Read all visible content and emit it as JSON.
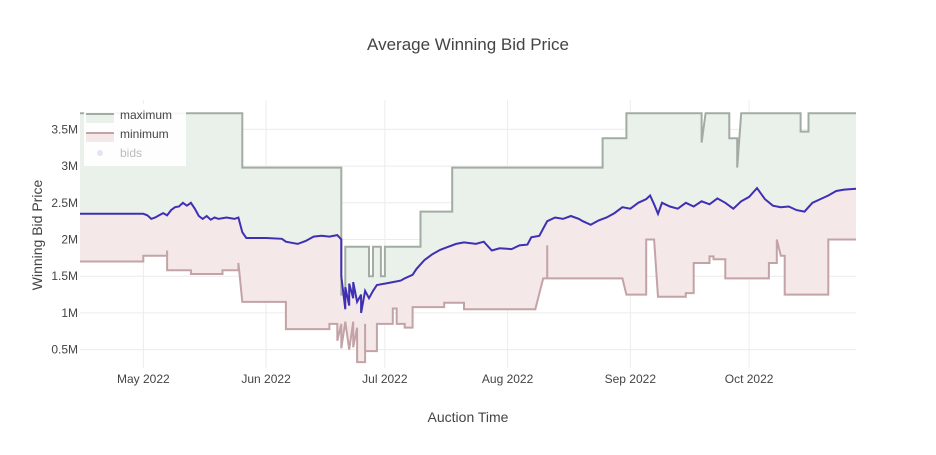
{
  "chart_data": {
    "type": "line",
    "title": "Average Winning Bid Price",
    "xlabel": "Auction Time",
    "ylabel": "Winning Bid Price",
    "x_range": [
      "2022-04-15",
      "2022-10-28"
    ],
    "ylim": [
      0.25,
      3.9
    ],
    "y_unit": "M",
    "x_ticks": [
      {
        "date": "2022-05-01",
        "label": "May 2022"
      },
      {
        "date": "2022-06-01",
        "label": "Jun 2022"
      },
      {
        "date": "2022-07-01",
        "label": "Jul 2022"
      },
      {
        "date": "2022-08-01",
        "label": "Aug 2022"
      },
      {
        "date": "2022-09-01",
        "label": "Sep 2022"
      },
      {
        "date": "2022-10-01",
        "label": "Oct 2022"
      }
    ],
    "y_ticks": [
      {
        "value": 0.5,
        "label": "0.5M"
      },
      {
        "value": 1.0,
        "label": "1M"
      },
      {
        "value": 1.5,
        "label": "1.5M"
      },
      {
        "value": 2.0,
        "label": "2M"
      },
      {
        "value": 2.5,
        "label": "2.5M"
      },
      {
        "value": 3.0,
        "label": "3M"
      },
      {
        "value": 3.5,
        "label": "3.5M"
      }
    ],
    "grid": true,
    "legend_position": "top-left",
    "colors": {
      "maximum_line": "#a3aca3",
      "maximum_fill": "#eaf1ea",
      "minimum_line": "#c4a3a6",
      "minimum_fill": "#f4e8e9",
      "average_line": "#3f2fb3",
      "bids_marker": "#e4e4f4",
      "grid": "#ececec"
    },
    "series": [
      {
        "name": "maximum",
        "points": [
          [
            "2022-04-15",
            3.72
          ],
          [
            "2022-05-26",
            3.72
          ],
          [
            "2022-05-26",
            2.98
          ],
          [
            "2022-06-20",
            2.98
          ],
          [
            "2022-06-20",
            1.25
          ],
          [
            "2022-06-21",
            1.25
          ],
          [
            "2022-06-21",
            1.9
          ],
          [
            "2022-06-27",
            1.9
          ],
          [
            "2022-06-27",
            1.5
          ],
          [
            "2022-06-28",
            1.5
          ],
          [
            "2022-06-28",
            1.9
          ],
          [
            "2022-06-30",
            1.9
          ],
          [
            "2022-06-30",
            1.5
          ],
          [
            "2022-07-01",
            1.5
          ],
          [
            "2022-07-01",
            1.9
          ],
          [
            "2022-07-10",
            1.9
          ],
          [
            "2022-07-10",
            2.38
          ],
          [
            "2022-07-18",
            2.38
          ],
          [
            "2022-07-18",
            2.98
          ],
          [
            "2022-08-25",
            2.98
          ],
          [
            "2022-08-25",
            3.38
          ],
          [
            "2022-08-31",
            3.38
          ],
          [
            "2022-08-31",
            3.72
          ],
          [
            "2022-09-19",
            3.72
          ],
          [
            "2022-09-19",
            3.32
          ],
          [
            "2022-09-20",
            3.72
          ],
          [
            "2022-09-26",
            3.72
          ],
          [
            "2022-09-26",
            3.38
          ],
          [
            "2022-09-28",
            3.38
          ],
          [
            "2022-09-28",
            2.98
          ],
          [
            "2022-09-29",
            3.72
          ],
          [
            "2022-10-14",
            3.72
          ],
          [
            "2022-10-14",
            3.47
          ],
          [
            "2022-10-16",
            3.47
          ],
          [
            "2022-10-16",
            3.72
          ],
          [
            "2022-10-28",
            3.72
          ]
        ]
      },
      {
        "name": "minimum",
        "points": [
          [
            "2022-04-15",
            1.7
          ],
          [
            "2022-05-01",
            1.7
          ],
          [
            "2022-05-01",
            1.78
          ],
          [
            "2022-05-07",
            1.78
          ],
          [
            "2022-05-07",
            1.85
          ],
          [
            "2022-05-07",
            1.58
          ],
          [
            "2022-05-13",
            1.58
          ],
          [
            "2022-05-13",
            1.53
          ],
          [
            "2022-05-21",
            1.53
          ],
          [
            "2022-05-21",
            1.58
          ],
          [
            "2022-05-25",
            1.58
          ],
          [
            "2022-05-25",
            1.68
          ],
          [
            "2022-05-26",
            1.15
          ],
          [
            "2022-06-06",
            1.15
          ],
          [
            "2022-06-06",
            0.78
          ],
          [
            "2022-06-17",
            0.78
          ],
          [
            "2022-06-17",
            0.85
          ],
          [
            "2022-06-19",
            0.85
          ],
          [
            "2022-06-19",
            0.62
          ],
          [
            "2022-06-20",
            0.85
          ],
          [
            "2022-06-20",
            0.52
          ],
          [
            "2022-06-21",
            0.88
          ],
          [
            "2022-06-22",
            0.5
          ],
          [
            "2022-06-23",
            0.88
          ],
          [
            "2022-06-23",
            0.53
          ],
          [
            "2022-06-24",
            0.8
          ],
          [
            "2022-06-24",
            0.33
          ],
          [
            "2022-06-26",
            0.33
          ],
          [
            "2022-06-26",
            0.85
          ],
          [
            "2022-06-26",
            0.48
          ],
          [
            "2022-06-29",
            0.48
          ],
          [
            "2022-06-29",
            0.85
          ],
          [
            "2022-07-03",
            0.85
          ],
          [
            "2022-07-03",
            1.06
          ],
          [
            "2022-07-04",
            1.06
          ],
          [
            "2022-07-04",
            0.85
          ],
          [
            "2022-07-06",
            0.85
          ],
          [
            "2022-07-06",
            0.8
          ],
          [
            "2022-07-08",
            0.8
          ],
          [
            "2022-07-08",
            1.08
          ],
          [
            "2022-07-16",
            1.08
          ],
          [
            "2022-07-16",
            1.14
          ],
          [
            "2022-07-21",
            1.14
          ],
          [
            "2022-07-21",
            1.05
          ],
          [
            "2022-08-08",
            1.05
          ],
          [
            "2022-08-10",
            1.47
          ],
          [
            "2022-08-11",
            1.47
          ],
          [
            "2022-08-11",
            1.92
          ],
          [
            "2022-08-11",
            1.47
          ],
          [
            "2022-08-30",
            1.47
          ],
          [
            "2022-08-31",
            1.25
          ],
          [
            "2022-09-05",
            1.25
          ],
          [
            "2022-09-05",
            2.0
          ],
          [
            "2022-09-07",
            2.0
          ],
          [
            "2022-09-08",
            1.22
          ],
          [
            "2022-09-15",
            1.22
          ],
          [
            "2022-09-15",
            1.27
          ],
          [
            "2022-09-17",
            1.27
          ],
          [
            "2022-09-17",
            1.68
          ],
          [
            "2022-09-21",
            1.68
          ],
          [
            "2022-09-21",
            1.77
          ],
          [
            "2022-09-22",
            1.77
          ],
          [
            "2022-09-22",
            1.73
          ],
          [
            "2022-09-25",
            1.73
          ],
          [
            "2022-09-25",
            1.47
          ],
          [
            "2022-10-06",
            1.47
          ],
          [
            "2022-10-06",
            1.68
          ],
          [
            "2022-10-08",
            1.68
          ],
          [
            "2022-10-08",
            1.85
          ],
          [
            "2022-10-08",
            1.78
          ],
          [
            "2022-10-08",
            2.0
          ],
          [
            "2022-10-09",
            1.78
          ],
          [
            "2022-10-10",
            1.78
          ],
          [
            "2022-10-10",
            1.25
          ],
          [
            "2022-10-21",
            1.25
          ],
          [
            "2022-10-21",
            2.0
          ],
          [
            "2022-10-28",
            2.0
          ]
        ]
      },
      {
        "name": "bids",
        "points": [
          [
            "2022-04-15",
            2.35
          ],
          [
            "2022-04-20",
            2.35
          ],
          [
            "2022-04-25",
            2.35
          ],
          [
            "2022-05-01",
            2.35
          ],
          [
            "2022-05-02",
            2.33
          ],
          [
            "2022-05-03",
            2.28
          ],
          [
            "2022-05-04",
            2.3
          ],
          [
            "2022-05-05",
            2.33
          ],
          [
            "2022-05-06",
            2.36
          ],
          [
            "2022-05-07",
            2.33
          ],
          [
            "2022-05-08",
            2.4
          ],
          [
            "2022-05-09",
            2.44
          ],
          [
            "2022-05-10",
            2.45
          ],
          [
            "2022-05-11",
            2.5
          ],
          [
            "2022-05-12",
            2.46
          ],
          [
            "2022-05-13",
            2.5
          ],
          [
            "2022-05-14",
            2.42
          ],
          [
            "2022-05-15",
            2.32
          ],
          [
            "2022-05-16",
            2.28
          ],
          [
            "2022-05-17",
            2.32
          ],
          [
            "2022-05-18",
            2.27
          ],
          [
            "2022-05-19",
            2.3
          ],
          [
            "2022-05-20",
            2.28
          ],
          [
            "2022-05-22",
            2.3
          ],
          [
            "2022-05-24",
            2.28
          ],
          [
            "2022-05-25",
            2.3
          ],
          [
            "2022-05-26",
            2.1
          ],
          [
            "2022-05-27",
            2.02
          ],
          [
            "2022-05-29",
            2.02
          ],
          [
            "2022-06-01",
            2.02
          ],
          [
            "2022-06-05",
            2.01
          ],
          [
            "2022-06-06",
            1.97
          ],
          [
            "2022-06-08",
            1.95
          ],
          [
            "2022-06-09",
            1.94
          ],
          [
            "2022-06-11",
            1.98
          ],
          [
            "2022-06-13",
            2.04
          ],
          [
            "2022-06-15",
            2.05
          ],
          [
            "2022-06-17",
            2.04
          ],
          [
            "2022-06-19",
            2.06
          ],
          [
            "2022-06-20",
            2.0
          ],
          [
            "2022-06-20",
            1.5
          ],
          [
            "2022-06-21",
            1.05
          ],
          [
            "2022-06-21",
            1.35
          ],
          [
            "2022-06-22",
            1.1
          ],
          [
            "2022-06-22",
            1.4
          ],
          [
            "2022-06-23",
            1.2
          ],
          [
            "2022-06-23",
            1.42
          ],
          [
            "2022-06-24",
            1.15
          ],
          [
            "2022-06-25",
            1.25
          ],
          [
            "2022-06-25",
            1.0
          ],
          [
            "2022-06-26",
            1.3
          ],
          [
            "2022-06-27",
            1.2
          ],
          [
            "2022-06-28",
            1.3
          ],
          [
            "2022-06-29",
            1.38
          ],
          [
            "2022-07-01",
            1.4
          ],
          [
            "2022-07-03",
            1.42
          ],
          [
            "2022-07-05",
            1.44
          ],
          [
            "2022-07-06",
            1.47
          ],
          [
            "2022-07-08",
            1.52
          ],
          [
            "2022-07-09",
            1.6
          ],
          [
            "2022-07-11",
            1.72
          ],
          [
            "2022-07-13",
            1.8
          ],
          [
            "2022-07-15",
            1.86
          ],
          [
            "2022-07-17",
            1.9
          ],
          [
            "2022-07-19",
            1.94
          ],
          [
            "2022-07-21",
            1.96
          ],
          [
            "2022-07-24",
            1.94
          ],
          [
            "2022-07-26",
            1.97
          ],
          [
            "2022-07-28",
            1.85
          ],
          [
            "2022-07-30",
            1.88
          ],
          [
            "2022-08-02",
            1.87
          ],
          [
            "2022-08-04",
            1.92
          ],
          [
            "2022-08-06",
            1.93
          ],
          [
            "2022-08-07",
            2.03
          ],
          [
            "2022-08-09",
            2.05
          ],
          [
            "2022-08-11",
            2.25
          ],
          [
            "2022-08-13",
            2.3
          ],
          [
            "2022-08-15",
            2.28
          ],
          [
            "2022-08-17",
            2.32
          ],
          [
            "2022-08-19",
            2.28
          ],
          [
            "2022-08-20",
            2.25
          ],
          [
            "2022-08-22",
            2.2
          ],
          [
            "2022-08-24",
            2.26
          ],
          [
            "2022-08-26",
            2.3
          ],
          [
            "2022-08-28",
            2.36
          ],
          [
            "2022-08-30",
            2.44
          ],
          [
            "2022-09-01",
            2.42
          ],
          [
            "2022-09-03",
            2.5
          ],
          [
            "2022-09-05",
            2.55
          ],
          [
            "2022-09-06",
            2.6
          ],
          [
            "2022-09-07",
            2.48
          ],
          [
            "2022-09-08",
            2.35
          ],
          [
            "2022-09-09",
            2.5
          ],
          [
            "2022-09-11",
            2.45
          ],
          [
            "2022-09-13",
            2.42
          ],
          [
            "2022-09-15",
            2.5
          ],
          [
            "2022-09-17",
            2.45
          ],
          [
            "2022-09-19",
            2.52
          ],
          [
            "2022-09-21",
            2.48
          ],
          [
            "2022-09-23",
            2.56
          ],
          [
            "2022-09-25",
            2.5
          ],
          [
            "2022-09-27",
            2.42
          ],
          [
            "2022-09-29",
            2.52
          ],
          [
            "2022-10-01",
            2.58
          ],
          [
            "2022-10-03",
            2.7
          ],
          [
            "2022-10-05",
            2.55
          ],
          [
            "2022-10-07",
            2.46
          ],
          [
            "2022-10-09",
            2.44
          ],
          [
            "2022-10-11",
            2.45
          ],
          [
            "2022-10-13",
            2.4
          ],
          [
            "2022-10-15",
            2.38
          ],
          [
            "2022-10-17",
            2.5
          ],
          [
            "2022-10-19",
            2.55
          ],
          [
            "2022-10-21",
            2.6
          ],
          [
            "2022-10-23",
            2.66
          ],
          [
            "2022-10-25",
            2.68
          ],
          [
            "2022-10-28",
            2.69
          ]
        ]
      }
    ]
  }
}
